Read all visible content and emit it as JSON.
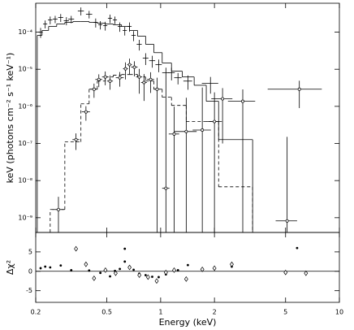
{
  "chart_data": [
    {
      "type": "spectrum",
      "ylabel": "keV (photons cm⁻² s⁻¹ keV⁻¹)",
      "xlog": true,
      "ylog": true,
      "xlim": [
        0.2,
        10
      ],
      "ylim": [
        4e-10,
        0.0006
      ],
      "yticks": [
        {
          "value": 0.0001,
          "label": "10⁻⁴"
        },
        {
          "value": 1e-05,
          "label": "10⁻⁵"
        },
        {
          "value": 1e-06,
          "label": "10⁻⁶"
        },
        {
          "value": 1e-07,
          "label": "10⁻⁷"
        },
        {
          "value": 1e-08,
          "label": "10⁻⁸"
        },
        {
          "value": 1e-09,
          "label": "10⁻⁹"
        }
      ],
      "series": [
        {
          "color": "#000000",
          "marker": "cross",
          "x": [
            0.213,
            0.226,
            0.241,
            0.257,
            0.276,
            0.297,
            0.316,
            0.358,
            0.398,
            0.433,
            0.46,
            0.49,
            0.521,
            0.555,
            0.591,
            0.63,
            0.67,
            0.706,
            0.759,
            0.824,
            0.897,
            0.975,
            1.07,
            1.15,
            1.25,
            1.42,
            1.9
          ],
          "xerr": [
            0.006,
            0.006,
            0.007,
            0.008,
            0.009,
            0.01,
            0.012,
            0.014,
            0.016,
            0.012,
            0.012,
            0.013,
            0.014,
            0.015,
            0.016,
            0.017,
            0.018,
            0.02,
            0.025,
            0.03,
            0.035,
            0.04,
            0.05,
            0.05,
            0.06,
            0.08,
            0.2
          ],
          "values": [
            0.0001,
            0.000166,
            0.000213,
            0.000224,
            0.000248,
            0.000203,
            0.000224,
            0.000372,
            0.000304,
            0.000183,
            0.000158,
            0.00015,
            0.000236,
            0.000213,
            0.000142,
            0.000111,
            0.000142,
            8.2e-05,
            4.7e-05,
            2e-05,
            1.7e-05,
            1.33e-05,
            8e-06,
            8e-06,
            5.9e-06,
            4.8e-06,
            4.2e-06
          ],
          "yerr": [
            3e-05,
            4e-05,
            5e-05,
            5e-05,
            6e-05,
            5e-05,
            5e-05,
            9e-05,
            7e-05,
            5e-05,
            4e-05,
            4e-05,
            6e-05,
            5e-05,
            4e-05,
            3e-05,
            4e-05,
            2.5e-05,
            1.5e-05,
            7e-06,
            6e-06,
            5e-06,
            3e-06,
            3e-06,
            2e-06,
            2e-06,
            2e-06
          ]
        },
        {
          "color": "#000000",
          "marker": "open",
          "x": [
            0.268,
            0.336,
            0.382,
            0.424,
            0.451,
            0.49,
            0.521,
            0.591,
            0.636,
            0.67,
            0.713,
            0.759,
            0.807,
            0.879,
            0.955,
            1.07,
            1.19,
            1.39,
            1.71,
            2.0,
            2.22,
            2.88,
            5.1,
            5.97
          ],
          "xerr": [
            0.02,
            0.015,
            0.02,
            0.02,
            0.02,
            0.02,
            0.02,
            0.03,
            0.02,
            0.02,
            0.03,
            0.03,
            0.03,
            0.04,
            0.04,
            0.05,
            0.08,
            0.2,
            0.2,
            0.2,
            0.3,
            0.5,
            0.7,
            2.0
          ],
          "values": [
            1.66e-09,
            1.27e-07,
            7.1e-07,
            2.9e-06,
            5.3e-06,
            6.2e-06,
            4.8e-06,
            5.9e-06,
            1.03e-05,
            1.33e-05,
            1.14e-05,
            6.2e-06,
            4.4e-06,
            5.3e-06,
            2.9e-06,
            6.2e-09,
            1.8e-07,
            2.1e-07,
            2.3e-07,
            3.9e-07,
            1.6e-06,
            1.37e-06,
            8.2e-10,
            2.9e-06
          ],
          "yerr": [
            2e-09,
            6e-08,
            3e-07,
            1.2e-06,
            2e-06,
            2.5e-06,
            2e-06,
            2.5e-06,
            5e-06,
            6e-06,
            5e-06,
            4e-06,
            3e-06,
            3e-06,
            3e-06,
            5e-06,
            8e-07,
            1.5e-06,
            3e-06,
            2e-06,
            1.5e-06,
            1.5e-06,
            1.5e-07,
            2e-06
          ]
        }
      ],
      "models": [
        {
          "color": "#000000",
          "dashed": false,
          "bins": [
            0.204,
            0.217,
            0.236,
            0.262,
            0.291,
            0.323,
            0.358,
            0.398,
            0.442,
            0.49,
            0.543,
            0.604,
            0.67,
            0.743,
            0.824,
            0.916,
            1.02,
            1.15,
            1.32,
            1.54,
            1.8,
            2.11,
            3.27
          ],
          "values": [
            8.2e-05,
            0.000111,
            0.000142,
            0.000166,
            0.000183,
            0.000193,
            0.000193,
            0.000183,
            0.000174,
            0.000166,
            0.000158,
            0.000142,
            0.000111,
            7.8e-05,
            4.7e-05,
            2.8e-05,
            1.47e-05,
            8.9e-06,
            6.2e-06,
            3.7e-06,
            1.37e-06,
            1.27e-07
          ]
        },
        {
          "color": "#000000",
          "dashed": true,
          "bins": [
            0.241,
            0.291,
            0.358,
            0.398,
            0.442,
            0.49,
            0.543,
            0.604,
            0.67,
            0.743,
            0.824,
            0.916,
            1.02,
            1.15,
            1.39,
            2.11,
            3.27
          ],
          "values": [
            1.66e-09,
            1.1e-07,
            1.17e-06,
            2.9e-06,
            4.8e-06,
            6.2e-06,
            6.9e-06,
            7.2e-06,
            7.2e-06,
            6.2e-06,
            4.8e-06,
            2.9e-06,
            1.76e-06,
            1.06e-06,
            3.9e-07,
            6.8e-09
          ]
        }
      ]
    },
    {
      "type": "residuals",
      "xlabel": "Energy (keV)",
      "ylabel": "Δχ²",
      "xlog": true,
      "ylog": false,
      "xlim": [
        0.2,
        10
      ],
      "ylim": [
        -8,
        10
      ],
      "xticks": [
        0.2,
        0.5,
        1,
        2,
        5,
        10
      ],
      "yticks": [
        5,
        0,
        -5
      ],
      "series": [
        {
          "color": "#000000",
          "marker": "dot",
          "x": [
            0.213,
            0.226,
            0.241,
            0.276,
            0.316,
            0.398,
            0.46,
            0.521,
            0.555,
            0.591,
            0.63,
            0.63,
            0.67,
            0.706,
            0.759,
            0.824,
            0.897,
            0.975,
            1.07,
            1.25,
            1.42,
            2.5,
            5.8
          ],
          "values": [
            0.8,
            1.2,
            1.0,
            1.5,
            0.3,
            0.2,
            -0.4,
            -1.3,
            0.1,
            0.6,
            5.8,
            2.5,
            1.2,
            0.4,
            -0.6,
            -1.0,
            -1.4,
            -1.5,
            -0.8,
            0.3,
            1.6,
            1.2,
            6.0
          ]
        },
        {
          "color": "#000000",
          "marker": "diamond",
          "x": [
            0.336,
            0.382,
            0.424,
            0.491,
            0.56,
            0.67,
            0.76,
            0.85,
            0.95,
            1.07,
            1.19,
            1.39,
            1.71,
            2.0,
            2.5,
            5.0,
            6.5
          ],
          "values": [
            5.8,
            1.8,
            -1.8,
            0.3,
            -0.5,
            1.0,
            -1.0,
            -1.5,
            -2.5,
            -0.3,
            0.3,
            -2.0,
            0.5,
            0.8,
            1.8,
            -0.3,
            -0.5
          ]
        }
      ]
    }
  ]
}
